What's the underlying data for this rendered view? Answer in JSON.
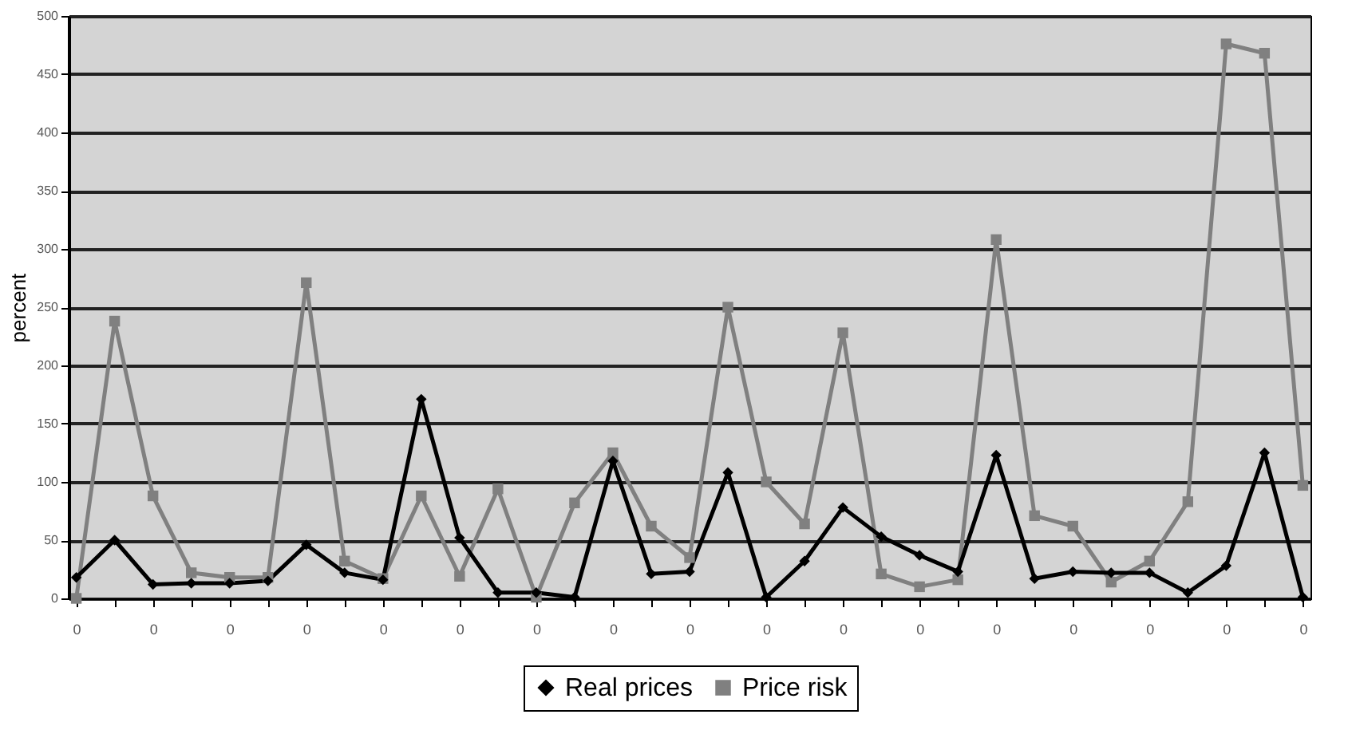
{
  "chart_data": {
    "type": "line",
    "ylabel": "percent",
    "categories": [
      "0",
      null,
      "0",
      null,
      "0",
      null,
      "0",
      null,
      "0",
      null,
      "0",
      null,
      "0",
      null,
      "0",
      null,
      "0",
      null,
      "0",
      null,
      "0",
      null,
      "0",
      null,
      "0",
      null,
      "0",
      null,
      "0",
      null,
      "0",
      null,
      "0"
    ],
    "series": [
      {
        "name": "Real prices",
        "color": "#000000",
        "marker": "diamond",
        "values": [
          18,
          50,
          12,
          13,
          13,
          15,
          46,
          22,
          16,
          171,
          52,
          5,
          5,
          1,
          118,
          21,
          23,
          108,
          1,
          32,
          78,
          53,
          37,
          23,
          123,
          17,
          23,
          22,
          22,
          5,
          28,
          125,
          1
        ]
      },
      {
        "name": "Price risk",
        "color": "#808080",
        "marker": "square",
        "values": [
          0,
          238,
          88,
          22,
          18,
          18,
          271,
          32,
          17,
          88,
          19,
          94,
          1,
          82,
          125,
          62,
          35,
          250,
          100,
          64,
          228,
          21,
          10,
          16,
          308,
          71,
          62,
          14,
          32,
          83,
          476,
          468,
          97
        ]
      }
    ],
    "ylim": [
      0,
      500
    ],
    "yticks": [
      0,
      50,
      100,
      150,
      200,
      250,
      300,
      350,
      400,
      450,
      500
    ],
    "grid": "y",
    "legend": "bottom"
  }
}
